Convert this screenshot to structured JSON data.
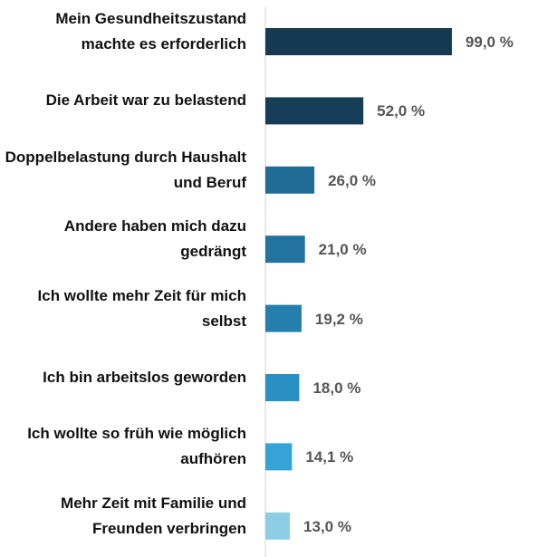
{
  "chart_data": {
    "type": "bar",
    "orientation": "horizontal",
    "categories": [
      "Mein Gesundheitszustand machte es erforderlich",
      "Die Arbeit war zu belastend",
      "Doppelbelastung durch Haushalt und Beruf",
      "Andere haben mich dazu gedrängt",
      "Ich wollte mehr Zeit für mich selbst",
      "Ich bin arbeitslos geworden",
      "Ich wollte so früh wie möglich aufhören",
      "Mehr Zeit mit Familie und Freunden verbringen"
    ],
    "values": [
      99.0,
      52.0,
      26.0,
      21.0,
      19.2,
      18.0,
      14.1,
      13.0
    ],
    "value_labels": [
      "99,0 %",
      "52,0 %",
      "26,0 %",
      "21,0 %",
      "19,2 %",
      "18,0 %",
      "14,1 %",
      "13,0 %"
    ],
    "colors": [
      "#153a52",
      "#163d57",
      "#1f6d94",
      "#22749f",
      "#257fae",
      "#2a8fc2",
      "#36a3d6",
      "#8ecde6"
    ],
    "xlim": [
      0,
      100
    ]
  }
}
